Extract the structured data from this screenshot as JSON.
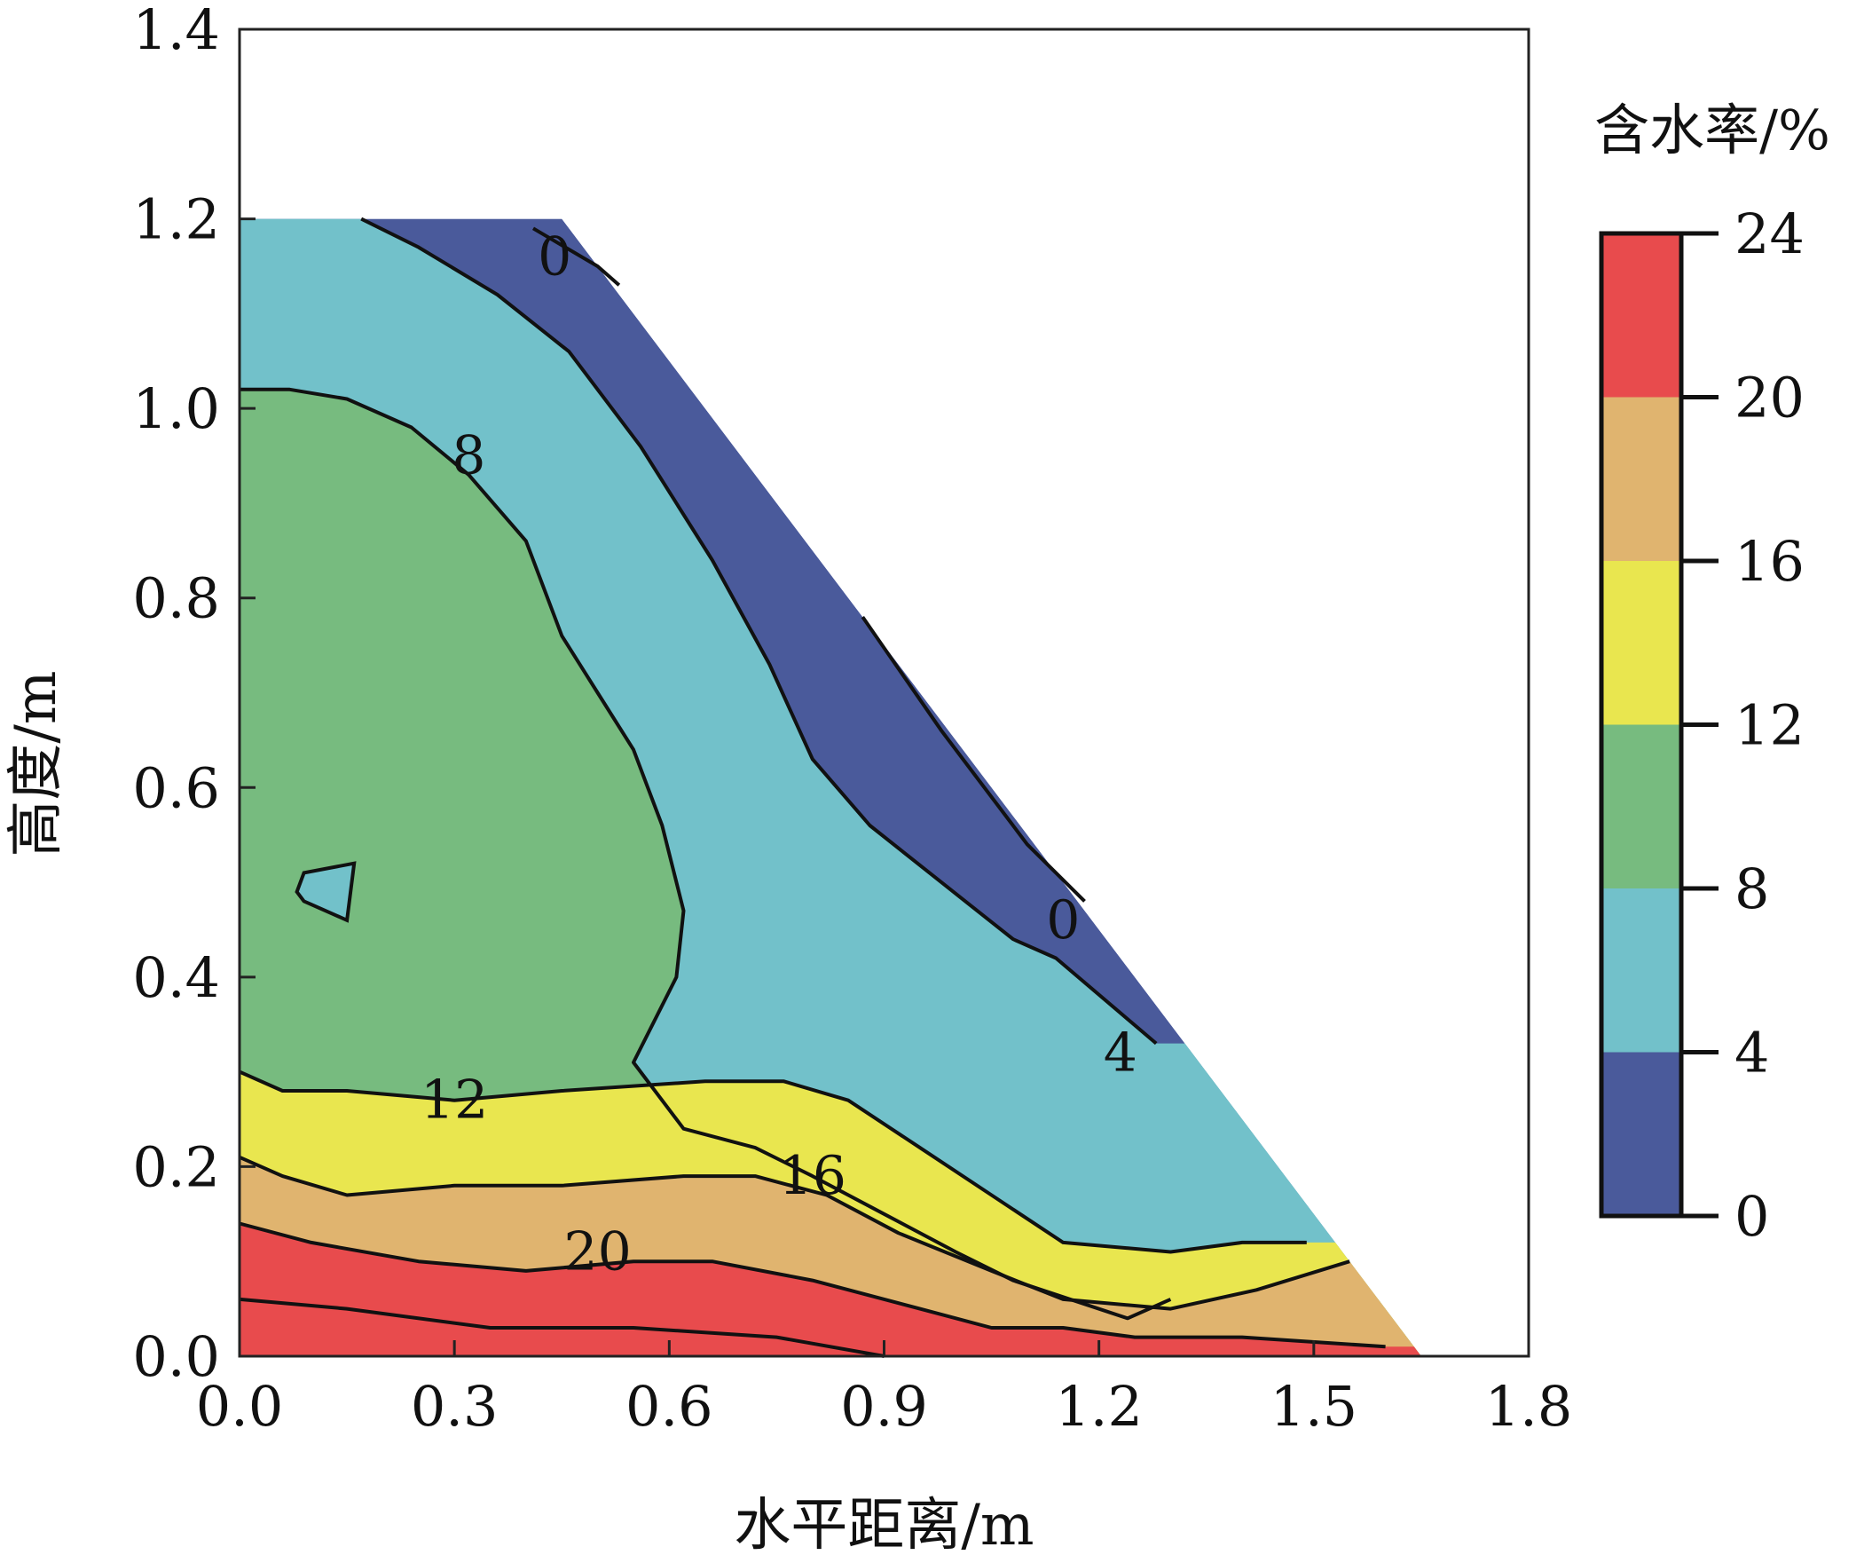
{
  "chart_data": {
    "type": "contour",
    "xlabel": "水平距离/m",
    "ylabel": "高度/m",
    "xlim": [
      0.0,
      1.8
    ],
    "ylim": [
      0.0,
      1.4
    ],
    "xticks": [
      "0.0",
      "0.3",
      "0.6",
      "0.9",
      "1.2",
      "1.5",
      "1.8"
    ],
    "yticks": [
      "0.0",
      "0.2",
      "0.4",
      "0.6",
      "0.8",
      "1.0",
      "1.2",
      "1.4"
    ],
    "colorbar": {
      "title": "含水率/%",
      "ticks": [
        "0",
        "4",
        "8",
        "12",
        "16",
        "20",
        "24"
      ],
      "levels": [
        {
          "from": 0,
          "to": 4,
          "color": "#4a5a9b"
        },
        {
          "from": 4,
          "to": 8,
          "color": "#72c1ca"
        },
        {
          "from": 8,
          "to": 12,
          "color": "#77bb7f"
        },
        {
          "from": 12,
          "to": 16,
          "color": "#e9e64f"
        },
        {
          "from": 16,
          "to": 20,
          "color": "#e0b46f"
        },
        {
          "from": 20,
          "to": 24,
          "color": "#e84b4d"
        }
      ]
    },
    "domain_boundary": [
      [
        0.0,
        0.0
      ],
      [
        0.0,
        1.2
      ],
      [
        0.45,
        1.2
      ],
      [
        1.65,
        0.0
      ]
    ],
    "contour_labels": [
      {
        "text": "0",
        "x": 0.44,
        "y": 1.16
      },
      {
        "text": "8",
        "x": 0.32,
        "y": 0.95
      },
      {
        "text": "0",
        "x": 1.15,
        "y": 0.46
      },
      {
        "text": "4",
        "x": 1.23,
        "y": 0.32
      },
      {
        "text": "12",
        "x": 0.3,
        "y": 0.27
      },
      {
        "text": "16",
        "x": 0.8,
        "y": 0.19
      },
      {
        "text": "20",
        "x": 0.5,
        "y": 0.11
      }
    ]
  }
}
